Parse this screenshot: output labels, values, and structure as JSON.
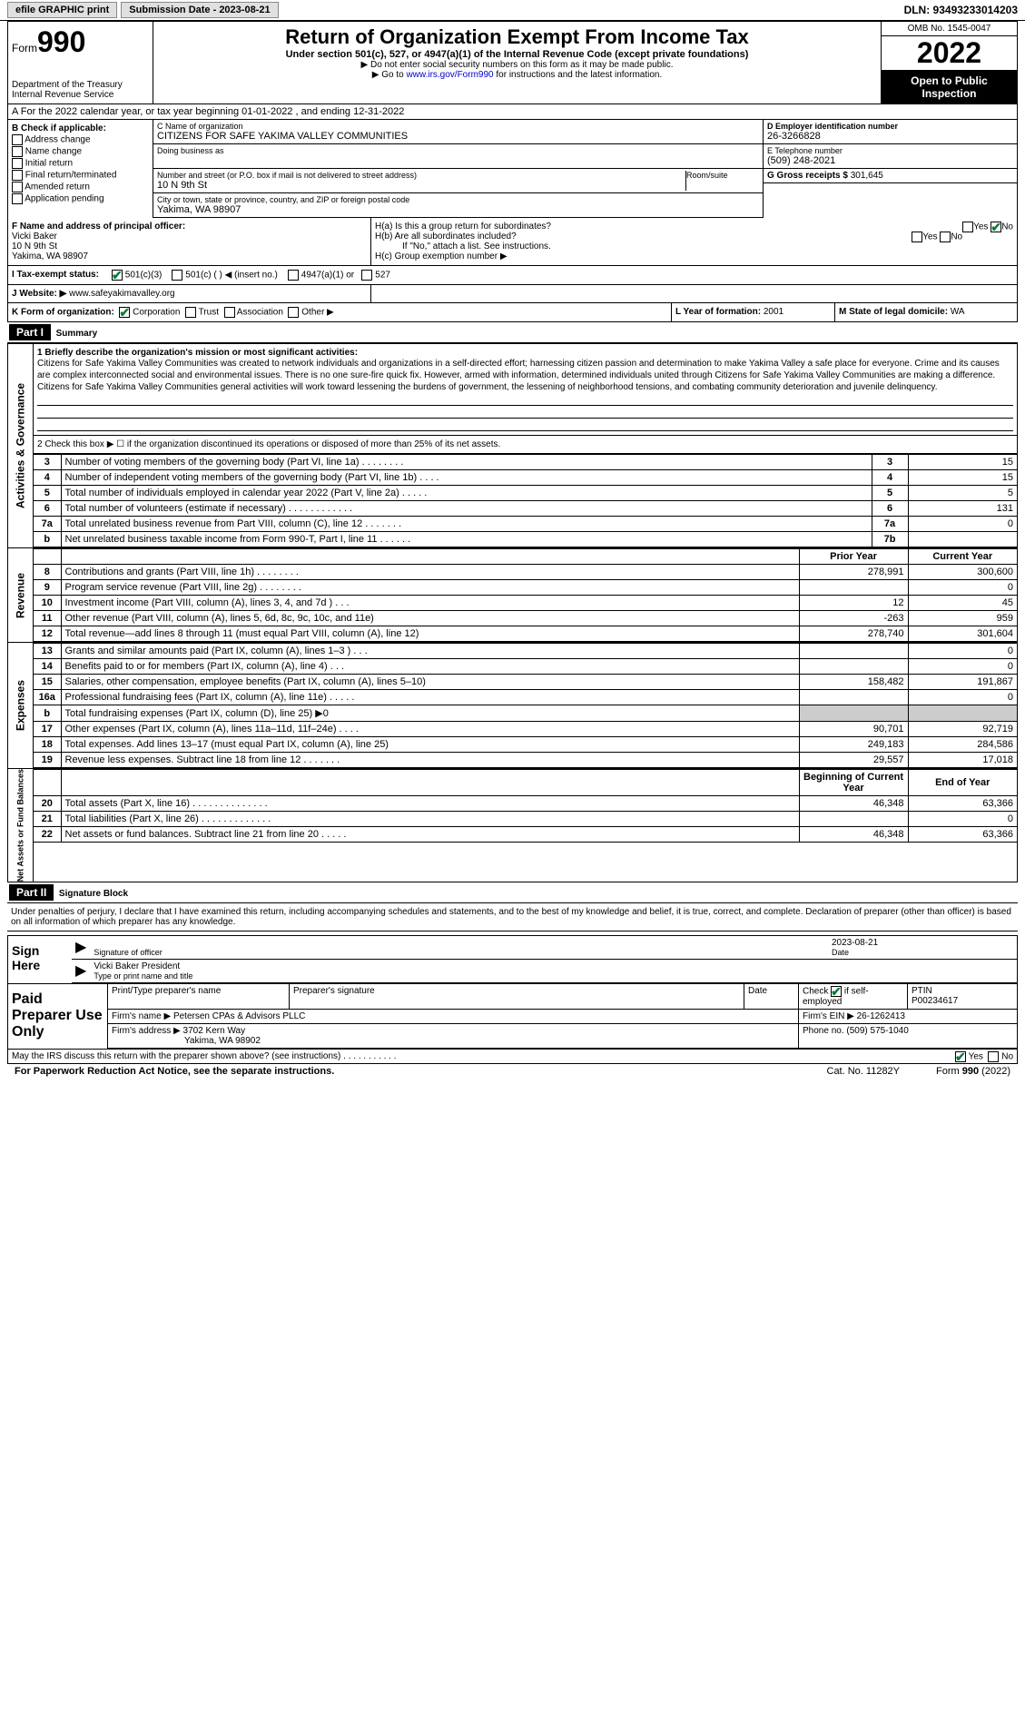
{
  "top": {
    "efile": "efile GRAPHIC print",
    "submission": "Submission Date - 2023-08-21",
    "dln": "DLN: 93493233014203"
  },
  "header": {
    "form": "Form",
    "num": "990",
    "title": "Return of Organization Exempt From Income Tax",
    "sub": "Under section 501(c), 527, or 4947(a)(1) of the Internal Revenue Code (except private foundations)",
    "note1": "▶ Do not enter social security numbers on this form as it may be made public.",
    "note2_pre": "▶ Go to ",
    "note2_link": "www.irs.gov/Form990",
    "note2_post": " for instructions and the latest information.",
    "dept": "Department of the Treasury\nInternal Revenue Service",
    "omb": "OMB No. 1545-0047",
    "year": "2022",
    "open": "Open to Public Inspection"
  },
  "rowA": "A  For the 2022 calendar year, or tax year beginning 01-01-2022   , and ending 12-31-2022",
  "B": {
    "title": "B Check if applicable:",
    "addr": "Address change",
    "name": "Name change",
    "init": "Initial return",
    "final": "Final return/terminated",
    "amend": "Amended return",
    "app": "Application pending"
  },
  "C": {
    "name_lbl": "C Name of organization",
    "name": "CITIZENS FOR SAFE YAKIMA VALLEY COMMUNITIES",
    "dba_lbl": "Doing business as",
    "addr_lbl": "Number and street (or P.O. box if mail is not delivered to street address)",
    "room_lbl": "Room/suite",
    "addr": "10 N 9th St",
    "city_lbl": "City or town, state or province, country, and ZIP or foreign postal code",
    "city": "Yakima, WA  98907"
  },
  "D": {
    "lbl": "D Employer identification number",
    "val": "26-3266828"
  },
  "E": {
    "lbl": "E Telephone number",
    "val": "(509) 248-2021"
  },
  "G": {
    "lbl": "G Gross receipts $",
    "val": "301,645"
  },
  "F": {
    "lbl": "F  Name and address of principal officer:",
    "name": "Vicki Baker",
    "addr": "10 N 9th St",
    "city": "Yakima, WA  98907"
  },
  "H": {
    "a": "H(a)  Is this a group return for subordinates?",
    "b": "H(b)  Are all subordinates included?",
    "b_note": "If \"No,\" attach a list. See instructions.",
    "c": "H(c)  Group exemption number ▶"
  },
  "I": {
    "lbl": "I  Tax-exempt status:",
    "opt1": "501(c)(3)",
    "opt2": "501(c) (  ) ◀ (insert no.)",
    "opt3": "4947(a)(1) or",
    "opt4": "527"
  },
  "J": {
    "lbl": "J  Website: ▶",
    "val": "www.safeyakimavalley.org"
  },
  "K": {
    "lbl": "K Form of organization:",
    "corp": "Corporation",
    "trust": "Trust",
    "assoc": "Association",
    "other": "Other ▶"
  },
  "L": {
    "lbl": "L Year of formation:",
    "val": "2001"
  },
  "M": {
    "lbl": "M State of legal domicile:",
    "val": "WA"
  },
  "part1": {
    "hdr": "Part I",
    "title": "Summary"
  },
  "mission": {
    "lbl": "1   Briefly describe the organization's mission or most significant activities:",
    "text": "Citizens for Safe Yakima Valley Communities was created to network individuals and organizations in a self-directed effort; harnessing citizen passion and determination to make Yakima Valley a safe place for everyone. Crime and its causes are complex interconnected social and environmental issues. There is no one sure-fire quick fix. However, armed with information, determined individuals united through Citizens for Safe Yakima Valley Communities are making a difference. Citizens for Safe Yakima Valley Communities general activities will work toward lessening the burdens of government, the lessening of neighborhood tensions, and combating community deterioration and juvenile delinquency."
  },
  "line2": "2   Check this box ▶ ☐  if the organization discontinued its operations or disposed of more than 25% of its net assets.",
  "gov_rows": [
    {
      "n": "3",
      "d": "Number of voting members of the governing body (Part VI, line 1a)  .   .   .   .   .   .   .   .",
      "b": "3",
      "v": "15"
    },
    {
      "n": "4",
      "d": "Number of independent voting members of the governing body (Part VI, line 1b)  .   .   .   .",
      "b": "4",
      "v": "15"
    },
    {
      "n": "5",
      "d": "Total number of individuals employed in calendar year 2022 (Part V, line 2a)  .   .   .   .   .",
      "b": "5",
      "v": "5"
    },
    {
      "n": "6",
      "d": "Total number of volunteers (estimate if necessary)  .   .   .   .   .   .   .   .   .   .   .   .",
      "b": "6",
      "v": "131"
    },
    {
      "n": "7a",
      "d": "Total unrelated business revenue from Part VIII, column (C), line 12  .   .   .   .   .   .   .",
      "b": "7a",
      "v": "0"
    },
    {
      "n": "b",
      "d": "Net unrelated business taxable income from Form 990-T, Part I, line 11  .   .   .   .   .   .",
      "b": "7b",
      "v": ""
    }
  ],
  "rev_hdr": {
    "py": "Prior Year",
    "cy": "Current Year"
  },
  "rev_rows": [
    {
      "n": "8",
      "d": "Contributions and grants (Part VIII, line 1h)  .   .   .   .   .   .   .   .",
      "p": "278,991",
      "c": "300,600"
    },
    {
      "n": "9",
      "d": "Program service revenue (Part VIII, line 2g)  .   .   .   .   .   .   .   .",
      "p": "",
      "c": "0"
    },
    {
      "n": "10",
      "d": "Investment income (Part VIII, column (A), lines 3, 4, and 7d )  .   .   .",
      "p": "12",
      "c": "45"
    },
    {
      "n": "11",
      "d": "Other revenue (Part VIII, column (A), lines 5, 6d, 8c, 9c, 10c, and 11e)",
      "p": "-263",
      "c": "959"
    },
    {
      "n": "12",
      "d": "Total revenue—add lines 8 through 11 (must equal Part VIII, column (A), line 12)",
      "p": "278,740",
      "c": "301,604"
    }
  ],
  "exp_rows": [
    {
      "n": "13",
      "d": "Grants and similar amounts paid (Part IX, column (A), lines 1–3 )  .   .   .",
      "p": "",
      "c": "0"
    },
    {
      "n": "14",
      "d": "Benefits paid to or for members (Part IX, column (A), line 4)  .   .   .",
      "p": "",
      "c": "0"
    },
    {
      "n": "15",
      "d": "Salaries, other compensation, employee benefits (Part IX, column (A), lines 5–10)",
      "p": "158,482",
      "c": "191,867"
    },
    {
      "n": "16a",
      "d": "Professional fundraising fees (Part IX, column (A), line 11e)  .   .   .   .   .",
      "p": "",
      "c": "0"
    },
    {
      "n": "b",
      "d": "Total fundraising expenses (Part IX, column (D), line 25) ▶0",
      "shaded": true
    },
    {
      "n": "17",
      "d": "Other expenses (Part IX, column (A), lines 11a–11d, 11f–24e)  .   .   .   .",
      "p": "90,701",
      "c": "92,719"
    },
    {
      "n": "18",
      "d": "Total expenses. Add lines 13–17 (must equal Part IX, column (A), line 25)",
      "p": "249,183",
      "c": "284,586"
    },
    {
      "n": "19",
      "d": "Revenue less expenses. Subtract line 18 from line 12  .   .   .   .   .   .   .",
      "p": "29,557",
      "c": "17,018"
    }
  ],
  "net_hdr": {
    "b": "Beginning of Current Year",
    "e": "End of Year"
  },
  "net_rows": [
    {
      "n": "20",
      "d": "Total assets (Part X, line 16)  .   .   .   .   .   .   .   .   .   .   .   .   .   .",
      "p": "46,348",
      "c": "63,366"
    },
    {
      "n": "21",
      "d": "Total liabilities (Part X, line 26)  .   .   .   .   .   .   .   .   .   .   .   .   .",
      "p": "",
      "c": "0"
    },
    {
      "n": "22",
      "d": "Net assets or fund balances. Subtract line 21 from line 20  .   .   .   .   .",
      "p": "46,348",
      "c": "63,366"
    }
  ],
  "side_labels": {
    "gov": "Activities & Governance",
    "rev": "Revenue",
    "exp": "Expenses",
    "net": "Net Assets or Fund Balances"
  },
  "part2": {
    "hdr": "Part II",
    "title": "Signature Block"
  },
  "sig_note": "Under penalties of perjury, I declare that I have examined this return, including accompanying schedules and statements, and to the best of my knowledge and belief, it is true, correct, and complete. Declaration of preparer (other than officer) is based on all information of which preparer has any knowledge.",
  "sign": {
    "here": "Sign Here",
    "sig_lbl": "Signature of officer",
    "date_lbl": "Date",
    "date": "2023-08-21",
    "name": "Vicki Baker  President",
    "name_lbl": "Type or print name and title"
  },
  "prep": {
    "title": "Paid Preparer Use Only",
    "h1": "Print/Type preparer's name",
    "h2": "Preparer's signature",
    "h3": "Date",
    "h4": "Check ☑ if self-employed",
    "h5": "PTIN",
    "ptin": "P00234617",
    "firm_lbl": "Firm's name    ▶",
    "firm": "Petersen CPAs & Advisors PLLC",
    "ein_lbl": "Firm's EIN ▶",
    "ein": "26-1262413",
    "addr_lbl": "Firm's address ▶",
    "addr": "3702 Kern Way",
    "city": "Yakima, WA  98902",
    "phone_lbl": "Phone no.",
    "phone": "(509) 575-1040"
  },
  "discuss": "May the IRS discuss this return with the preparer shown above? (see instructions)  .   .   .   .   .   .   .   .   .   .   .",
  "footer": {
    "pra": "For Paperwork Reduction Act Notice, see the separate instructions.",
    "cat": "Cat. No. 11282Y",
    "form": "Form 990 (2022)"
  }
}
